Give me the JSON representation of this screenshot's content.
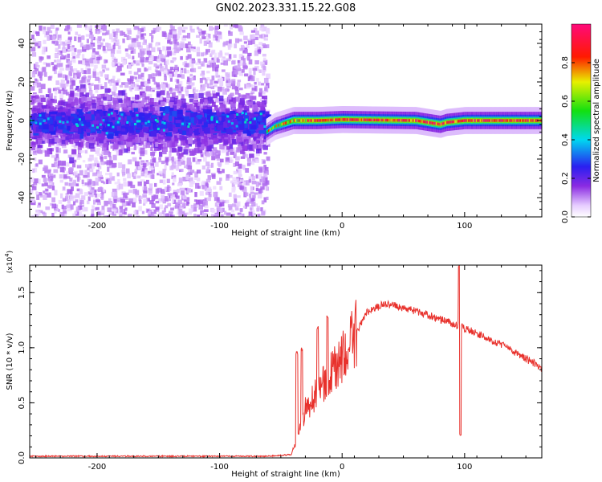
{
  "figure": {
    "title": "GN02.2023.331.15.22.G08"
  },
  "chart_data": [
    {
      "type": "heatmap",
      "title": "GN02.2023.331.15.22.G08",
      "xlabel": "Height of straight line (km)",
      "ylabel": "Frequency (Hz)",
      "xlim": [
        -255,
        163
      ],
      "ylim": [
        -50,
        50
      ],
      "x_ticks": [
        -200,
        -100,
        0,
        100
      ],
      "x_tick_labels": [
        "-200",
        "-100",
        "0",
        "100"
      ],
      "y_ticks": [
        -40,
        -20,
        0,
        20,
        40
      ],
      "y_tick_labels": [
        "-40",
        "-20",
        "0",
        "20",
        "40"
      ],
      "colorbar": {
        "label": "Normalized spectral amplitude",
        "range": [
          0,
          1
        ],
        "ticks": [
          0.0,
          0.2,
          0.4,
          0.6,
          0.8
        ],
        "tick_labels": [
          "0.0",
          "0.2",
          "0.4",
          "0.6",
          "0.8"
        ],
        "colormap": "rainbow (white-purple-blue-cyan-green-yellow-red-magenta)"
      },
      "regions": [
        {
          "x_range": [
            -255,
            -62
          ],
          "description": "noisy scattered energy",
          "core_band_hz": [
            -8,
            8
          ],
          "scatter_band_hz": [
            -50,
            50
          ],
          "amplitude": "low (0.1-0.3)"
        },
        {
          "x_range": [
            -62,
            163
          ],
          "description": "narrow spectral line",
          "center_frequency_hz": [
            [
              -62,
              -6
            ],
            [
              -55,
              -3
            ],
            [
              -40,
              0
            ],
            [
              -20,
              0
            ],
            [
              0,
              0.5
            ],
            [
              60,
              0
            ],
            [
              80,
              -2
            ],
            [
              85,
              -1
            ],
            [
              100,
              0
            ],
            [
              163,
              0
            ]
          ],
          "amplitude": "high (0.6-1.0)"
        }
      ]
    },
    {
      "type": "line",
      "xlabel": "Height of straight line (km)",
      "ylabel": "SNR (10 * v/v)",
      "y_multiplier": "(x10^4)",
      "xlim": [
        -255,
        163
      ],
      "ylim": [
        0,
        17500
      ],
      "x_ticks": [
        -200,
        -100,
        0,
        100
      ],
      "x_tick_labels": [
        "-200",
        "-100",
        "0",
        "100"
      ],
      "y_ticks": [
        0,
        5000,
        10000,
        15000
      ],
      "y_tick_labels": [
        "0.0",
        "0.5",
        "1.0",
        "1.5"
      ],
      "color": "#e8312c",
      "envelope": [
        {
          "x": -255,
          "y": 150
        },
        {
          "x": -60,
          "y": 150
        },
        {
          "x": -42,
          "y": 300
        },
        {
          "x": -37,
          "y": 1500
        },
        {
          "x": -30,
          "y": 4500
        },
        {
          "x": -20,
          "y": 6000
        },
        {
          "x": -10,
          "y": 7500
        },
        {
          "x": 0,
          "y": 9000
        },
        {
          "x": 10,
          "y": 11000
        },
        {
          "x": 20,
          "y": 13200
        },
        {
          "x": 35,
          "y": 14000
        },
        {
          "x": 55,
          "y": 13500
        },
        {
          "x": 75,
          "y": 12800
        },
        {
          "x": 94,
          "y": 12000
        },
        {
          "x": 110,
          "y": 11300
        },
        {
          "x": 130,
          "y": 10300
        },
        {
          "x": 150,
          "y": 9000
        },
        {
          "x": 163,
          "y": 8200
        }
      ],
      "spikes": [
        {
          "x": -37,
          "y": 9500
        },
        {
          "x": -33,
          "y": 9900
        },
        {
          "x": -20,
          "y": 11800
        },
        {
          "x": -12,
          "y": 12800
        },
        {
          "x": 95.5,
          "y": 17500
        },
        {
          "x": 96.5,
          "y": 2100
        }
      ]
    }
  ]
}
